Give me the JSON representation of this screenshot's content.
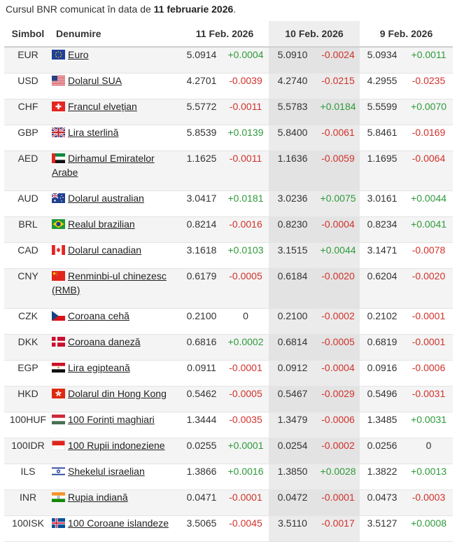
{
  "caption": {
    "prefix": "Cursul BNR comunicat în data de ",
    "date": "11 februarie 2026",
    "suffix": "."
  },
  "headers": {
    "symbol": "Simbol",
    "name": "Denumire",
    "day1": "11 Feb. 2026",
    "day2": "10 Feb. 2026",
    "day3": "9 Feb. 2026"
  },
  "colors": {
    "positive": "#2e9a3a",
    "negative": "#d0322c"
  },
  "rows": [
    {
      "symbol": "EUR",
      "flag": "eu-flag-icon",
      "name": "Euro",
      "v1": "5.0914",
      "c1": "+0.0004",
      "v2": "5.0910",
      "c2": "-0.0024",
      "v3": "5.0934",
      "c3": "+0.0011"
    },
    {
      "symbol": "USD",
      "flag": "us-flag-icon",
      "name": "Dolarul SUA",
      "v1": "4.2701",
      "c1": "-0.0039",
      "v2": "4.2740",
      "c2": "-0.0215",
      "v3": "4.2955",
      "c3": "-0.0235"
    },
    {
      "symbol": "CHF",
      "flag": "ch-flag-icon",
      "name": "Francul elvețian",
      "v1": "5.5772",
      "c1": "-0.0011",
      "v2": "5.5783",
      "c2": "+0.0184",
      "v3": "5.5599",
      "c3": "+0.0070"
    },
    {
      "symbol": "GBP",
      "flag": "gb-flag-icon",
      "name": "Lira sterlină",
      "v1": "5.8539",
      "c1": "+0.0139",
      "v2": "5.8400",
      "c2": "-0.0061",
      "v3": "5.8461",
      "c3": "-0.0169"
    },
    {
      "symbol": "AED",
      "flag": "ae-flag-icon",
      "name": "Dirhamul Emiratelor Arabe",
      "v1": "1.1625",
      "c1": "-0.0011",
      "v2": "1.1636",
      "c2": "-0.0059",
      "v3": "1.1695",
      "c3": "-0.0064"
    },
    {
      "symbol": "AUD",
      "flag": "au-flag-icon",
      "name": "Dolarul australian",
      "v1": "3.0417",
      "c1": "+0.0181",
      "v2": "3.0236",
      "c2": "+0.0075",
      "v3": "3.0161",
      "c3": "+0.0044"
    },
    {
      "symbol": "BRL",
      "flag": "br-flag-icon",
      "name": "Realul brazilian",
      "v1": "0.8214",
      "c1": "-0.0016",
      "v2": "0.8230",
      "c2": "-0.0004",
      "v3": "0.8234",
      "c3": "+0.0041"
    },
    {
      "symbol": "CAD",
      "flag": "ca-flag-icon",
      "name": "Dolarul canadian",
      "v1": "3.1618",
      "c1": "+0.0103",
      "v2": "3.1515",
      "c2": "+0.0044",
      "v3": "3.1471",
      "c3": "-0.0078"
    },
    {
      "symbol": "CNY",
      "flag": "cn-flag-icon",
      "name": "Renminbi-ul chinezesc (RMB)",
      "v1": "0.6179",
      "c1": "-0.0005",
      "v2": "0.6184",
      "c2": "-0.0020",
      "v3": "0.6204",
      "c3": "-0.0020"
    },
    {
      "symbol": "CZK",
      "flag": "cz-flag-icon",
      "name": "Coroana cehă",
      "v1": "0.2100",
      "c1": "0",
      "v2": "0.2100",
      "c2": "-0.0002",
      "v3": "0.2102",
      "c3": "-0.0001"
    },
    {
      "symbol": "DKK",
      "flag": "dk-flag-icon",
      "name": "Coroana daneză",
      "v1": "0.6816",
      "c1": "+0.0002",
      "v2": "0.6814",
      "c2": "-0.0005",
      "v3": "0.6819",
      "c3": "-0.0001"
    },
    {
      "symbol": "EGP",
      "flag": "eg-flag-icon",
      "name": "Lira egipteană",
      "v1": "0.0911",
      "c1": "-0.0001",
      "v2": "0.0912",
      "c2": "-0.0004",
      "v3": "0.0916",
      "c3": "-0.0006"
    },
    {
      "symbol": "HKD",
      "flag": "hk-flag-icon",
      "name": "Dolarul din Hong Kong",
      "v1": "0.5462",
      "c1": "-0.0005",
      "v2": "0.5467",
      "c2": "-0.0029",
      "v3": "0.5496",
      "c3": "-0.0031"
    },
    {
      "symbol": "100HUF",
      "flag": "hu-flag-icon",
      "name": "100 Forinți maghiari",
      "v1": "1.3444",
      "c1": "-0.0035",
      "v2": "1.3479",
      "c2": "-0.0006",
      "v3": "1.3485",
      "c3": "+0.0031"
    },
    {
      "symbol": "100IDR",
      "flag": "id-flag-icon",
      "name": "100 Rupii indoneziene",
      "v1": "0.0255",
      "c1": "+0.0001",
      "v2": "0.0254",
      "c2": "-0.0002",
      "v3": "0.0256",
      "c3": "0"
    },
    {
      "symbol": "ILS",
      "flag": "il-flag-icon",
      "name": "Shekelul israelian",
      "v1": "1.3866",
      "c1": "+0.0016",
      "v2": "1.3850",
      "c2": "+0.0028",
      "v3": "1.3822",
      "c3": "+0.0013"
    },
    {
      "symbol": "INR",
      "flag": "in-flag-icon",
      "name": "Rupia indiană",
      "v1": "0.0471",
      "c1": "-0.0001",
      "v2": "0.0472",
      "c2": "-0.0001",
      "v3": "0.0473",
      "c3": "-0.0003"
    },
    {
      "symbol": "100ISK",
      "flag": "is-flag-icon",
      "name": "100 Coroane islandeze",
      "v1": "3.5065",
      "c1": "-0.0045",
      "v2": "3.5110",
      "c2": "-0.0017",
      "v3": "3.5127",
      "c3": "+0.0008"
    }
  ]
}
